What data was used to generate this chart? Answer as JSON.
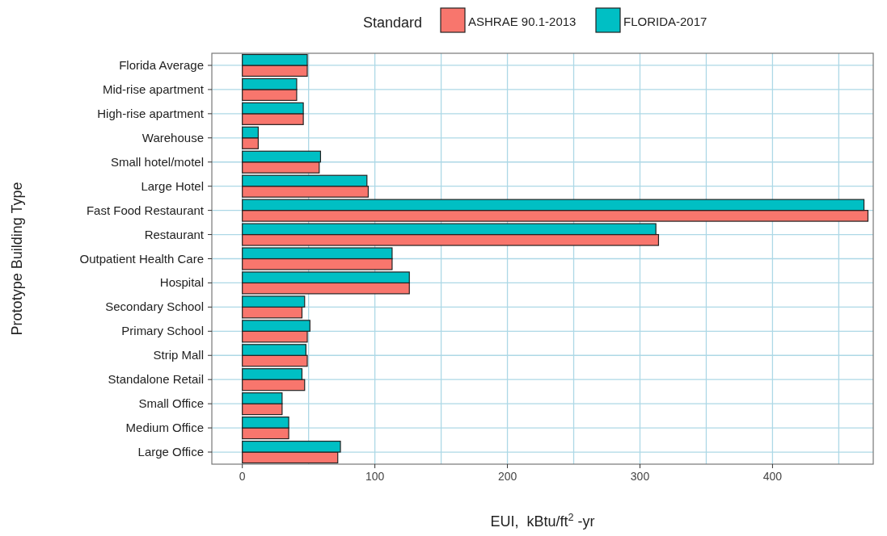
{
  "chart_data": {
    "type": "bar",
    "orientation": "horizontal",
    "xlabel": "EUI,  kBtu/ft$^{2}$ -yr",
    "ylabel": "Prototype Building Type",
    "legend_title": "Standard",
    "legend": "top",
    "grid": true,
    "categories": [
      "Florida Average",
      "Mid-rise apartment",
      "High-rise apartment",
      "Warehouse",
      "Small hotel/motel",
      "Large Hotel",
      "Fast Food Restaurant",
      "Restaurant",
      "Outpatient Health Care",
      "Hospital",
      "Secondary School",
      "Primary School",
      "Strip Mall",
      "Standalone Retail",
      "Small Office",
      "Medium Office",
      "Large Office"
    ],
    "series": [
      {
        "name": "ASHRAE 90.1-2013",
        "color": "#f8766d",
        "values": [
          49,
          41,
          46,
          12,
          58,
          95,
          472,
          314,
          113,
          126,
          45,
          49,
          49,
          47,
          30,
          35,
          72
        ]
      },
      {
        "name": "FLORIDA-2017",
        "color": "#00bfc4",
        "values": [
          49,
          41,
          46,
          12,
          59,
          94,
          469,
          312,
          113,
          126,
          47,
          51,
          48,
          45,
          30,
          35,
          74
        ]
      }
    ],
    "xlim": [
      -23,
      476
    ],
    "xticks": [
      0,
      {
        "value": 50,
        "label": null
      },
      100,
      {
        "value": 150,
        "label": null
      },
      200,
      {
        "value": 250,
        "label": null
      },
      300,
      {
        "value": 350,
        "label": null
      },
      400,
      {
        "value": 450,
        "label": null
      }
    ]
  }
}
